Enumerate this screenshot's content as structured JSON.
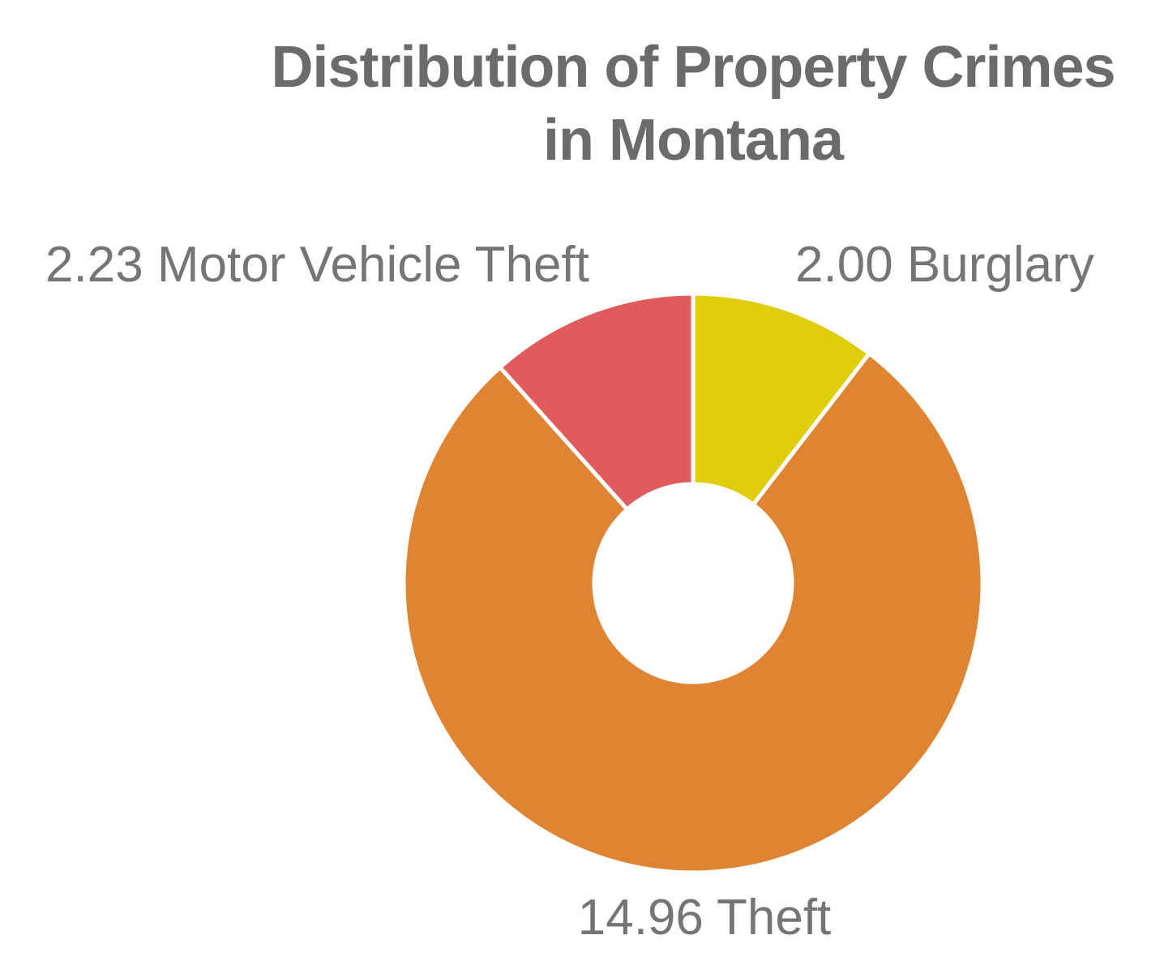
{
  "title": {
    "text": "Distribution of Property Crimes in Montana",
    "lines": [
      "Distribution of Property Crimes",
      "in Montana"
    ]
  },
  "colors": {
    "background": "#ffffff",
    "title_text": "#6b6b6b",
    "label_text": "#757575",
    "slice_divider": "#ffffff"
  },
  "chart_data": {
    "type": "pie",
    "subtype": "donut",
    "title": "Distribution of Property Crimes in Montana",
    "total": 19.19,
    "start_angle_deg": 0,
    "direction": "clockwise",
    "inner_radius_ratio": 0.34,
    "grid": false,
    "legend_position": "none",
    "labels_position": "outside",
    "segments": [
      {
        "label": "Burglary",
        "value": 2.0,
        "color": "#e0cd0d",
        "annotation": "2.00 Burglary"
      },
      {
        "label": "Theft",
        "value": 14.96,
        "color": "#de8433",
        "annotation": "14.96 Theft"
      },
      {
        "label": "Motor Vehicle Theft",
        "value": 2.23,
        "color": "#e05c5c",
        "annotation": "2.23 Motor Vehicle Theft"
      }
    ]
  }
}
